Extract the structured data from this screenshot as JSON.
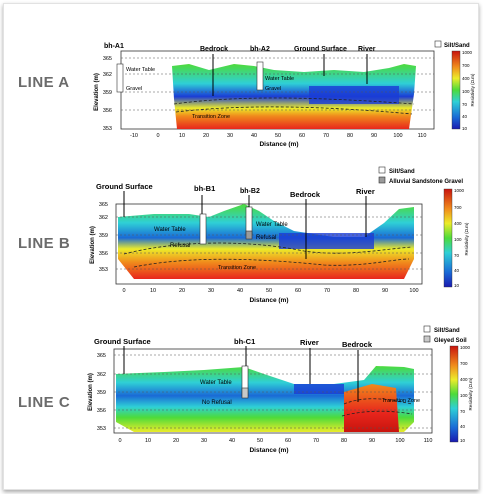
{
  "lines": [
    {
      "label": "LINE A",
      "ylabel": "Elevation (m)",
      "xlabel": "Distance (m)",
      "y_ticks": [
        "365",
        "362",
        "359",
        "356",
        "353"
      ],
      "x_ticks": [
        "-10",
        "0",
        "10",
        "20",
        "30",
        "40",
        "50",
        "60",
        "70",
        "80",
        "90",
        "100",
        "110"
      ],
      "annotations": {
        "borehole": "bh-A1",
        "bedrock": "Bedrock",
        "borehole2": "bh-A2",
        "ground_surface": "Ground Surface",
        "river": "River",
        "water_table_1": "Water Table",
        "water_table_2": "Water Table",
        "gravel_1": "Gravel",
        "gravel_2": "Gravel",
        "transition_zone": "Transition Zone"
      },
      "legend": [
        "Silt/Sand"
      ],
      "colorbar": {
        "label": "Resistivity (Ω.m)",
        "ticks": [
          "1000",
          "700",
          "400",
          "100",
          "70",
          "40",
          "10"
        ]
      }
    },
    {
      "label": "LINE B",
      "ylabel": "Elevation (m)",
      "xlabel": "Distance (m)",
      "y_ticks": [
        "365",
        "362",
        "359",
        "356",
        "353"
      ],
      "x_ticks": [
        "0",
        "10",
        "20",
        "30",
        "40",
        "50",
        "60",
        "70",
        "80",
        "90",
        "100"
      ],
      "annotations": {
        "ground_surface": "Ground Surface",
        "borehole": "bh-B1",
        "borehole2": "bh-B2",
        "bedrock": "Bedrock",
        "river": "River",
        "water_table_1": "Water Table",
        "water_table_2": "Water Table",
        "refusal_1": "Refusal",
        "refusal_2": "Refusal",
        "transition_zone": "Transition Zone"
      },
      "legend": [
        "Silt/Sand",
        "Alluvial Sandstone Gravel"
      ],
      "colorbar": {
        "label": "Resistivity (Ω.m)",
        "ticks": [
          "1000",
          "700",
          "400",
          "100",
          "70",
          "40",
          "10"
        ]
      }
    },
    {
      "label": "LINE C",
      "ylabel": "Elevation (m)",
      "xlabel": "Distance (m)",
      "y_ticks": [
        "365",
        "362",
        "359",
        "356",
        "353"
      ],
      "x_ticks": [
        "0",
        "10",
        "20",
        "30",
        "40",
        "50",
        "60",
        "70",
        "80",
        "90",
        "100",
        "110"
      ],
      "annotations": {
        "ground_surface": "Ground Surface",
        "borehole": "bh-C1",
        "river": "River",
        "bedrock": "Bedrock",
        "water_table": "Water Table",
        "no_refusal": "No Refusal",
        "transition_zone": "Transition Zone"
      },
      "legend": [
        "Silt/Sand",
        "Gleyed Soil"
      ],
      "colorbar": {
        "label": "Resistivity (Ω.m)",
        "ticks": [
          "1000",
          "700",
          "400",
          "100",
          "70",
          "40",
          "10"
        ]
      }
    }
  ],
  "colors": {
    "low_resistivity": "#1a3cd6",
    "mid_resistivity": "#2fd0d6",
    "green_resistivity": "#4ddb3a",
    "yellow_resistivity": "#ecec2a",
    "orange_resistivity": "#f08a1c",
    "high_resistivity": "#e8261c",
    "silt_sand": "#ffffff",
    "gravel_gray": "#9a9a9a",
    "label_gray": "#6b6b6b"
  }
}
